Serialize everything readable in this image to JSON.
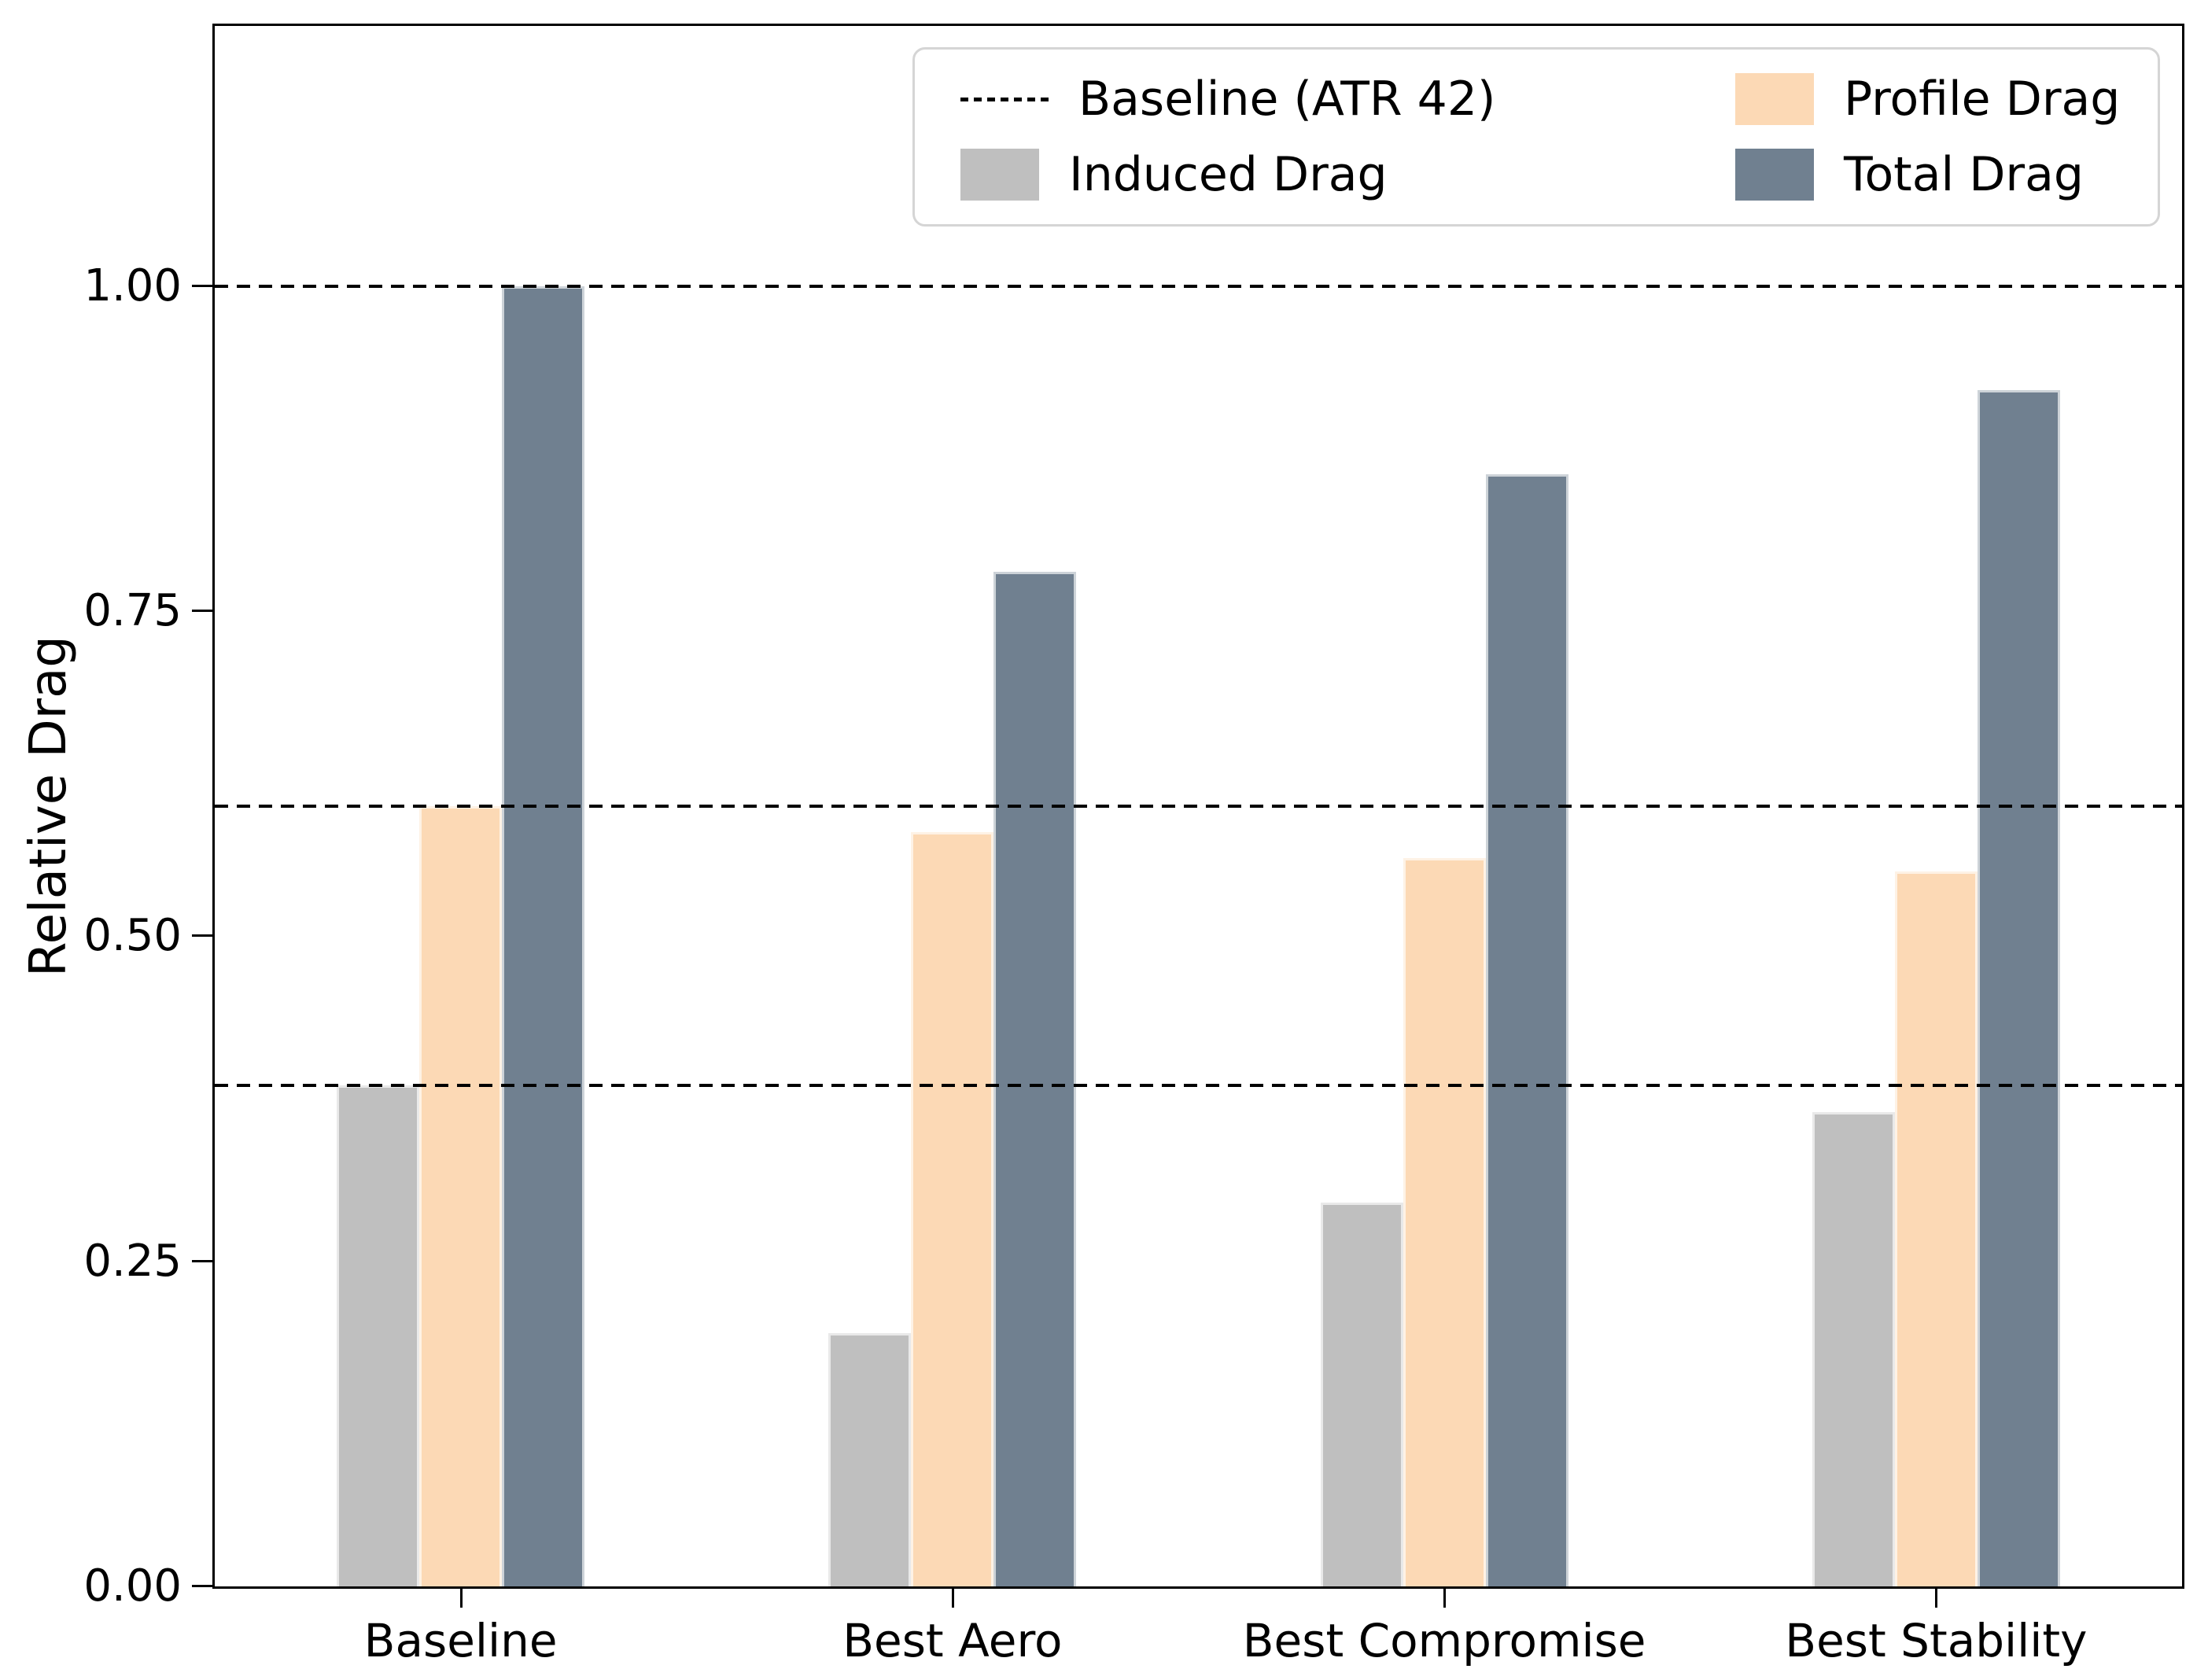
{
  "chart_data": {
    "type": "bar",
    "title": "",
    "xlabel": "",
    "ylabel": "Relative Drag",
    "ylim": [
      0,
      1.2
    ],
    "ytick_labels": [
      "0.00",
      "0.25",
      "0.50",
      "0.75",
      "1.00"
    ],
    "grid": "horizontal dashed reference lines only (drawn over bars)",
    "categories": [
      "Baseline",
      "Best Aero",
      "Best Compromise",
      "Best Stability"
    ],
    "series": [
      {
        "name": "Induced Drag",
        "color": "#bfbfbf",
        "values": [
          0.385,
          0.195,
          0.295,
          0.365
        ]
      },
      {
        "name": "Profile Drag",
        "color": "#fcd9b5",
        "values": [
          0.6,
          0.58,
          0.56,
          0.55
        ]
      },
      {
        "name": "Total Drag",
        "color": "#708090",
        "values": [
          1.0,
          0.78,
          0.855,
          0.92
        ]
      }
    ],
    "baseline_lines": {
      "label": "Baseline (ATR 42)",
      "style": "dashed",
      "color": "#000000",
      "values": [
        1.0,
        0.6,
        0.385
      ]
    },
    "legend": {
      "position": "upper right",
      "columns": 2,
      "entries": [
        {
          "label": "Baseline (ATR 42)",
          "handle": "dashed-line",
          "color": "#000000"
        },
        {
          "label": "Profile Drag",
          "handle": "patch",
          "color": "#fcd9b5"
        },
        {
          "label": "Induced Drag",
          "handle": "patch",
          "color": "#bfbfbf"
        },
        {
          "label": "Total Drag",
          "handle": "patch",
          "color": "#708090"
        }
      ]
    }
  }
}
